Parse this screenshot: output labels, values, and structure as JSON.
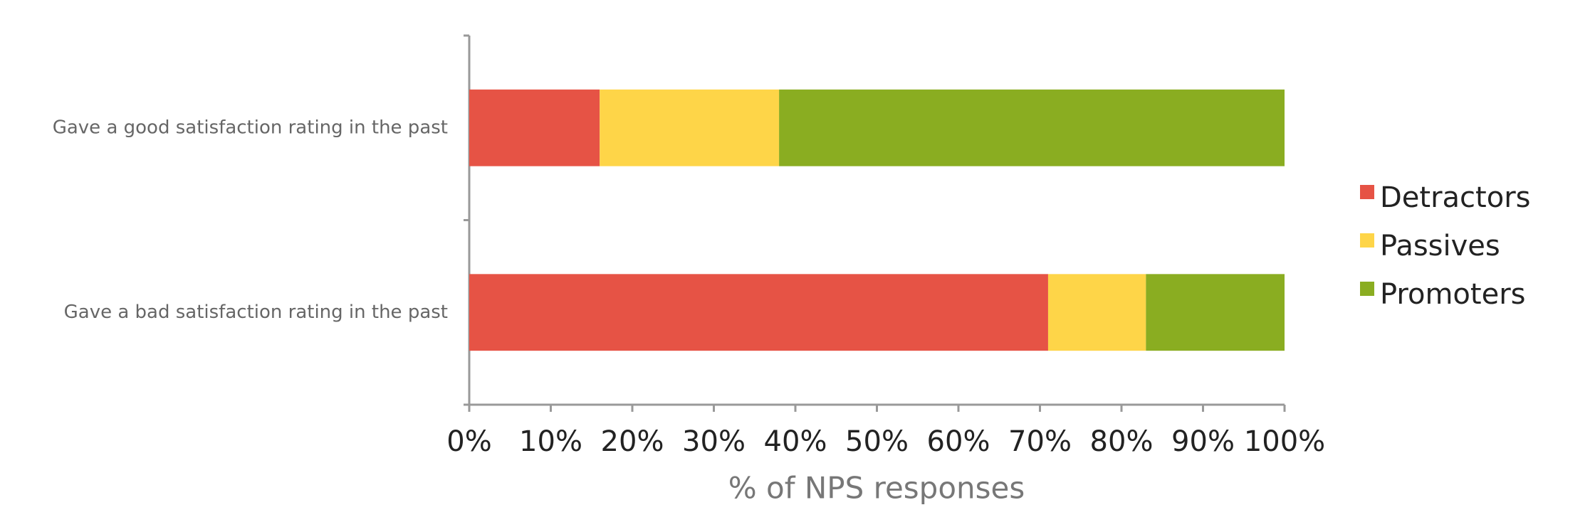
{
  "chart_data": {
    "type": "stacked_bar_horizontal",
    "xlabel": "% of NPS responses",
    "categories": [
      "Gave a good satisfaction rating in the past",
      "Gave a bad satisfaction rating in the past"
    ],
    "series": [
      {
        "name": "Detractors",
        "color": "#e65345",
        "values": [
          16,
          71
        ]
      },
      {
        "name": "Passives",
        "color": "#fed548",
        "values": [
          22,
          12
        ]
      },
      {
        "name": "Promoters",
        "color": "#8aad21",
        "values": [
          62,
          17
        ]
      }
    ],
    "xlim": [
      0,
      100
    ],
    "xticks": [
      {
        "value": 0,
        "label": "0%"
      },
      {
        "value": 10,
        "label": "10%"
      },
      {
        "value": 20,
        "label": "20%"
      },
      {
        "value": 30,
        "label": "30%"
      },
      {
        "value": 40,
        "label": "40%"
      },
      {
        "value": 50,
        "label": "50%"
      },
      {
        "value": 60,
        "label": "60%"
      },
      {
        "value": 70,
        "label": "70%"
      },
      {
        "value": 80,
        "label": "80%"
      },
      {
        "value": 90,
        "label": "90%"
      },
      {
        "value": 100,
        "label": "100%"
      }
    ],
    "legend": "right"
  }
}
